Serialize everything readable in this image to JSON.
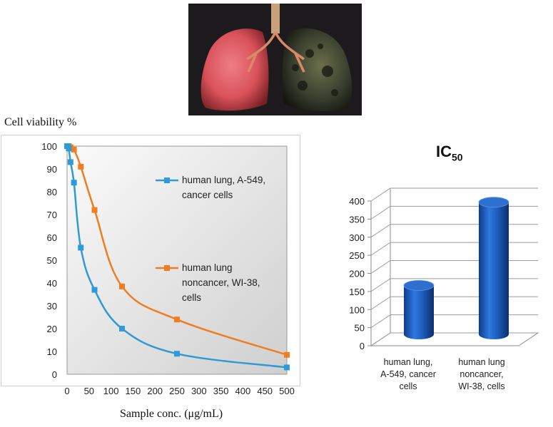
{
  "image": {
    "subject": "lungs-illustration",
    "colors": {
      "healthy": "#d9525a",
      "diseased": "#3a4030",
      "background": "#1c1a1c"
    }
  },
  "chart_data": [
    {
      "type": "line",
      "title": "",
      "ylabel": "Cell viability %",
      "xlabel": "Sample conc. (μg/mL)",
      "xlim": [
        0,
        500
      ],
      "ylim": [
        0,
        100
      ],
      "xticks": [
        "0",
        "50",
        "100",
        "150",
        "200",
        "250",
        "300",
        "350",
        "400",
        "450",
        "500"
      ],
      "yticks": [
        "0",
        "10",
        "20",
        "30",
        "40",
        "50",
        "60",
        "70",
        "80",
        "90",
        "100"
      ],
      "legend_position": "right",
      "plot_background": "gradient-gray",
      "series": [
        {
          "name": "human lung, A-549, cancer cells",
          "color": "#2e9ad6",
          "x": [
            0,
            1.9,
            3.9,
            7.8,
            15.6,
            31.25,
            62.5,
            125,
            250,
            500
          ],
          "y": [
            100,
            100,
            99,
            93,
            84,
            55.5,
            37,
            20,
            9,
            3
          ]
        },
        {
          "name": "human lung noncancer, WI-38, cells",
          "color": "#f07d22",
          "x": [
            0,
            1.9,
            3.9,
            7.8,
            15.6,
            31.25,
            62.5,
            125,
            250,
            500
          ],
          "y": [
            100,
            100,
            100,
            99.5,
            98.5,
            91,
            72,
            38.5,
            24,
            8.5
          ]
        }
      ]
    },
    {
      "type": "bar",
      "style": "3d-cylinder",
      "title": "IC",
      "title_subscript": "50",
      "categories": [
        "human lung, A-549, cancer cells",
        "human lung noncancer, WI-38, cells"
      ],
      "category_lines": [
        [
          "human lung,",
          "A-549, cancer",
          "cells"
        ],
        [
          "human lung",
          "noncancer,",
          "WI-38, cells"
        ]
      ],
      "values": [
        147,
        377
      ],
      "ylim": [
        0,
        400
      ],
      "yticks": [
        "0",
        "50",
        "100",
        "150",
        "200",
        "250",
        "300",
        "350",
        "400"
      ],
      "bar_color": "#1f5fbf",
      "grid": true
    }
  ]
}
